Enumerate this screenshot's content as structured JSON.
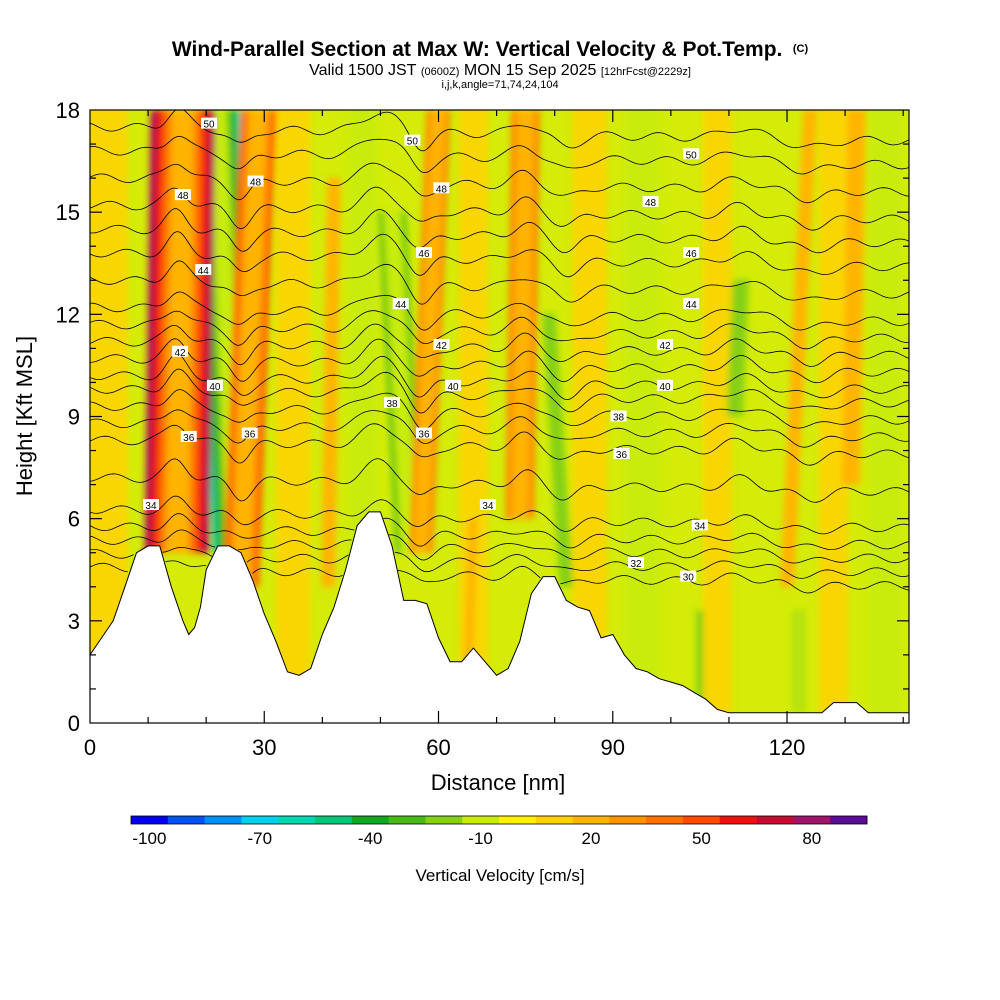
{
  "header": {
    "title": "Wind-Parallel Section at Max W: Vertical Velocity & Pot.Temp.",
    "title_mark": "(C)",
    "subtitle_prefix": "Valid 1500 JST",
    "subtitle_utc": "(0600Z)",
    "subtitle_date": "MON 15 Sep 2025",
    "subtitle_fcst": "[12hrFcst@2229z]",
    "subtitle3": "i,j,k,angle=71,74,24,104"
  },
  "colors": {
    "scale": [
      "#0000ee",
      "#0052f2",
      "#0090f5",
      "#00d2ee",
      "#00d8b0",
      "#00c878",
      "#10a820",
      "#46bb16",
      "#86d012",
      "#c8ec08",
      "#fff200",
      "#ffd200",
      "#ffb400",
      "#ff9400",
      "#ff7000",
      "#ff4a00",
      "#ee1010",
      "#c80a30",
      "#a0146a",
      "#5a0c96"
    ],
    "terrain": "#ffffff",
    "contour": "#000000"
  },
  "chart_data": {
    "type": "heatmap",
    "title": "Wind-Parallel Section at Max W: Vertical Velocity & Pot.Temp.",
    "xlabel": "Distance [nm]",
    "ylabel": "Height [Kft MSL]",
    "xlim": [
      0,
      141
    ],
    "ylim": [
      0,
      18
    ],
    "x_ticks": [
      0,
      30,
      60,
      90,
      120
    ],
    "x_tick_labels": [
      "0",
      "30",
      "60",
      "90",
      "120"
    ],
    "y_ticks": [
      0,
      3,
      6,
      9,
      12,
      15,
      18
    ],
    "y_tick_labels": [
      "0",
      "3",
      "6",
      "9",
      "12",
      "15",
      "18"
    ],
    "colorbar": {
      "title": "Vertical Velocity [cm/s]",
      "min": -105,
      "max": 95,
      "step": 10,
      "tick_values": [
        -100,
        -70,
        -40,
        -10,
        20,
        50,
        80
      ],
      "tick_labels": [
        "-100",
        "-70",
        "-40",
        "-10",
        "20",
        "50",
        "80"
      ]
    },
    "updraft_bands": [
      {
        "x": 15,
        "x_top": 16,
        "width": 2.3,
        "y_bottom": 5,
        "y_top": 18,
        "value": 85
      },
      {
        "x": 26,
        "x_top": 29,
        "width": 1.9,
        "y_bottom": 4,
        "y_top": 18,
        "value": 55
      },
      {
        "x": 57,
        "x_top": 60,
        "width": 1.5,
        "y_bottom": 5,
        "y_top": 18,
        "value": 45
      },
      {
        "x": 74,
        "x_top": 75,
        "width": 1.8,
        "y_bottom": 6,
        "y_top": 18,
        "value": 50
      },
      {
        "x": 41,
        "x_top": 42,
        "width": 1.5,
        "y_bottom": 4,
        "y_top": 16,
        "value": 25
      },
      {
        "x": 120,
        "x_top": 124,
        "width": 1.5,
        "y_bottom": 4,
        "y_top": 18,
        "value": 30
      },
      {
        "x": 131,
        "x_top": 132,
        "width": 2,
        "y_bottom": 7,
        "y_top": 18,
        "value": 25
      },
      {
        "x": 65,
        "x_top": 66,
        "width": 1.6,
        "y_bottom": 1,
        "y_top": 6,
        "value": 20
      }
    ],
    "downdraft_bands": [
      {
        "x": 13,
        "x_top": 21,
        "width": 1.2,
        "y_bottom": 5,
        "y_top": 18,
        "value": -50
      },
      {
        "x": 25,
        "x_top": 22,
        "width": 1.8,
        "y_bottom": 5,
        "y_top": 18,
        "value": -75
      },
      {
        "x": 55,
        "x_top": 52,
        "width": 1.8,
        "y_bottom": 5,
        "y_top": 15,
        "value": -45
      },
      {
        "x": 82,
        "x_top": 79,
        "width": 1.5,
        "y_bottom": 4,
        "y_top": 12,
        "value": -30
      },
      {
        "x": 111,
        "x_top": 112,
        "width": 1.8,
        "y_bottom": 9,
        "y_top": 13,
        "value": -30
      },
      {
        "x": 105,
        "x_top": 105,
        "width": 0.8,
        "y_bottom": 0.3,
        "y_top": 3.3,
        "value": -30
      },
      {
        "x": 122,
        "x_top": 122,
        "width": 0.6,
        "y_bottom": 0.3,
        "y_top": 3.3,
        "value": -45
      }
    ],
    "terrain_profile": {
      "x": [
        0,
        2,
        4,
        6,
        8,
        10,
        12,
        14,
        16,
        17,
        18,
        19,
        20,
        22,
        24,
        26,
        28,
        30,
        32,
        34,
        36,
        38,
        40,
        42,
        44,
        46,
        48,
        50,
        52,
        53,
        54,
        56,
        58,
        60,
        62,
        64,
        66,
        68,
        70,
        72,
        74,
        76,
        78,
        80,
        82,
        84,
        86,
        88,
        90,
        92,
        94,
        96,
        98,
        100,
        102,
        104,
        106,
        108,
        110,
        112,
        114,
        116,
        118,
        120,
        122,
        124,
        126,
        128,
        130,
        132,
        134,
        136,
        138,
        140,
        141
      ],
      "y": [
        2.0,
        2.5,
        3.0,
        4.0,
        5.0,
        5.2,
        5.2,
        4.0,
        3.0,
        2.6,
        2.8,
        3.4,
        4.5,
        5.2,
        5.2,
        5.0,
        4.2,
        3.2,
        2.4,
        1.5,
        1.4,
        1.6,
        2.6,
        3.4,
        4.5,
        5.8,
        6.2,
        6.2,
        5.2,
        4.4,
        3.6,
        3.6,
        3.5,
        2.5,
        1.8,
        1.8,
        2.2,
        1.8,
        1.4,
        1.6,
        2.4,
        3.8,
        4.3,
        4.3,
        3.6,
        3.4,
        3.3,
        2.5,
        2.6,
        2.0,
        1.6,
        1.5,
        1.3,
        1.2,
        1.1,
        0.9,
        0.7,
        0.4,
        0.3,
        0.3,
        0.3,
        0.3,
        0.3,
        0.3,
        0.3,
        0.3,
        0.3,
        0.6,
        0.6,
        0.6,
        0.3,
        0.3,
        0.3,
        0.3,
        0.3
      ]
    },
    "theta_contours": {
      "unit": "K (contour labels)",
      "levels": [
        {
          "value": 30,
          "y_mean": 4.3
        },
        {
          "value": 31,
          "y_mean": 4.7
        },
        {
          "value": 32,
          "y_mean": 5.1
        },
        {
          "value": 33,
          "y_mean": 5.5
        },
        {
          "value": 34,
          "y_mean": 6.0
        },
        {
          "value": 35,
          "y_mean": 7.0
        },
        {
          "value": 36,
          "y_mean": 8.1
        },
        {
          "value": 37,
          "y_mean": 8.6
        },
        {
          "value": 38,
          "y_mean": 9.1
        },
        {
          "value": 39,
          "y_mean": 9.6
        },
        {
          "value": 40,
          "y_mean": 10.0
        },
        {
          "value": 41,
          "y_mean": 10.5
        },
        {
          "value": 42,
          "y_mean": 11.0
        },
        {
          "value": 43,
          "y_mean": 11.5
        },
        {
          "value": 44,
          "y_mean": 12.0
        },
        {
          "value": 45,
          "y_mean": 12.8
        },
        {
          "value": 46,
          "y_mean": 13.6
        },
        {
          "value": 47,
          "y_mean": 14.3
        },
        {
          "value": 48,
          "y_mean": 15.0
        },
        {
          "value": 49,
          "y_mean": 15.8
        },
        {
          "value": 50,
          "y_mean": 16.6
        },
        {
          "value": 51,
          "y_mean": 17.3
        }
      ],
      "labels": [
        {
          "text": "50",
          "x": 20.5,
          "y": 17.6
        },
        {
          "text": "50",
          "x": 55.5,
          "y": 17.1
        },
        {
          "text": "50",
          "x": 103.5,
          "y": 16.7
        },
        {
          "text": "48",
          "x": 28.5,
          "y": 15.9
        },
        {
          "text": "48",
          "x": 60.5,
          "y": 15.7
        },
        {
          "text": "48",
          "x": 96.5,
          "y": 15.3
        },
        {
          "text": "48",
          "x": 16,
          "y": 15.5
        },
        {
          "text": "46",
          "x": 57.5,
          "y": 13.8
        },
        {
          "text": "46",
          "x": 103.5,
          "y": 13.8
        },
        {
          "text": "44",
          "x": 19.5,
          "y": 13.3
        },
        {
          "text": "44",
          "x": 53.5,
          "y": 12.3
        },
        {
          "text": "44",
          "x": 103.5,
          "y": 12.3
        },
        {
          "text": "42",
          "x": 15.5,
          "y": 10.9
        },
        {
          "text": "42",
          "x": 60.5,
          "y": 11.1
        },
        {
          "text": "42",
          "x": 99,
          "y": 11.1
        },
        {
          "text": "40",
          "x": 21.5,
          "y": 9.9
        },
        {
          "text": "40",
          "x": 62.5,
          "y": 9.9
        },
        {
          "text": "40",
          "x": 99,
          "y": 9.9
        },
        {
          "text": "38",
          "x": 52,
          "y": 9.4
        },
        {
          "text": "38",
          "x": 91,
          "y": 9.0
        },
        {
          "text": "36",
          "x": 17,
          "y": 8.4
        },
        {
          "text": "36",
          "x": 27.5,
          "y": 8.5
        },
        {
          "text": "36",
          "x": 57.5,
          "y": 8.5
        },
        {
          "text": "36",
          "x": 91.5,
          "y": 7.9
        },
        {
          "text": "34",
          "x": 10.5,
          "y": 6.4
        },
        {
          "text": "34",
          "x": 68.5,
          "y": 6.4
        },
        {
          "text": "34",
          "x": 105,
          "y": 5.8
        },
        {
          "text": "32",
          "x": 94,
          "y": 4.7
        },
        {
          "text": "30",
          "x": 103,
          "y": 4.3
        }
      ]
    }
  }
}
